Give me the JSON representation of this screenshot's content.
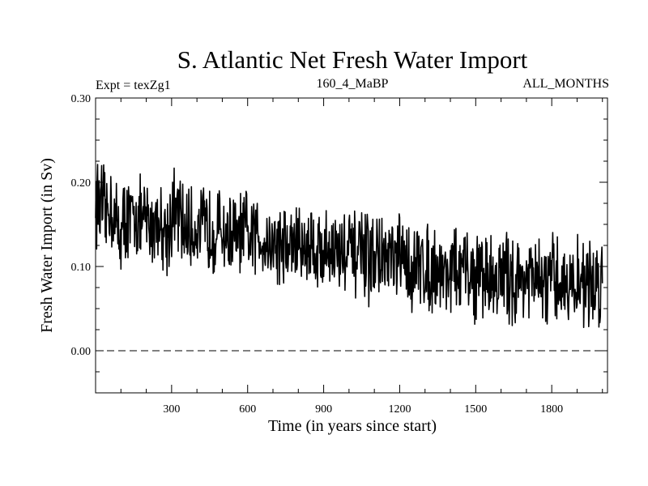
{
  "chart_data": {
    "type": "line",
    "title": "S. Atlantic Net Fresh Water Import",
    "subtitle_left": "Expt = texZg1",
    "subtitle_center": "160_4_MaBP",
    "subtitle_right": "ALL_MONTHS",
    "xlabel": "Time (in years since start)",
    "ylabel": "Fresh Water Import (in Sv)",
    "xlim": [
      0,
      2020
    ],
    "ylim": [
      -0.05,
      0.3
    ],
    "x_ticks": [
      300,
      600,
      900,
      1200,
      1500,
      1800
    ],
    "x_tick_labels": [
      "300",
      "600",
      "900",
      "1200",
      "1500",
      "1800"
    ],
    "y_ticks": [
      0.0,
      0.1,
      0.2,
      0.3
    ],
    "y_tick_labels": [
      "0.00",
      "0.10",
      "0.20",
      "0.30"
    ],
    "reference_line": {
      "y": 0.0,
      "style": "dashed"
    },
    "series": [
      {
        "name": "Fresh Water Import",
        "color": "#000000",
        "sampling_interval_years": 20,
        "start_year": 0,
        "values": [
          0.18,
          0.17,
          0.16,
          0.175,
          0.15,
          0.14,
          0.16,
          0.15,
          0.165,
          0.15,
          0.155,
          0.145,
          0.16,
          0.15,
          0.14,
          0.16,
          0.165,
          0.15,
          0.145,
          0.14,
          0.15,
          0.145,
          0.14,
          0.15,
          0.14,
          0.145,
          0.135,
          0.14,
          0.13,
          0.14,
          0.135,
          0.13,
          0.14,
          0.135,
          0.13,
          0.125,
          0.13,
          0.125,
          0.12,
          0.13,
          0.125,
          0.12,
          0.13,
          0.125,
          0.12,
          0.115,
          0.125,
          0.12,
          0.115,
          0.12,
          0.115,
          0.11,
          0.12,
          0.11,
          0.105,
          0.115,
          0.11,
          0.105,
          0.11,
          0.1,
          0.11,
          0.105,
          0.1,
          0.095,
          0.105,
          0.1,
          0.095,
          0.1,
          0.095,
          0.09,
          0.1,
          0.095,
          0.09,
          0.095,
          0.09,
          0.085,
          0.095,
          0.09,
          0.085,
          0.09,
          0.085,
          0.09,
          0.085,
          0.08,
          0.09,
          0.085,
          0.08,
          0.085,
          0.08,
          0.075,
          0.085,
          0.08,
          0.085,
          0.08,
          0.075,
          0.08,
          0.085,
          0.08,
          0.075,
          0.08,
          0.085
        ]
      }
    ]
  }
}
